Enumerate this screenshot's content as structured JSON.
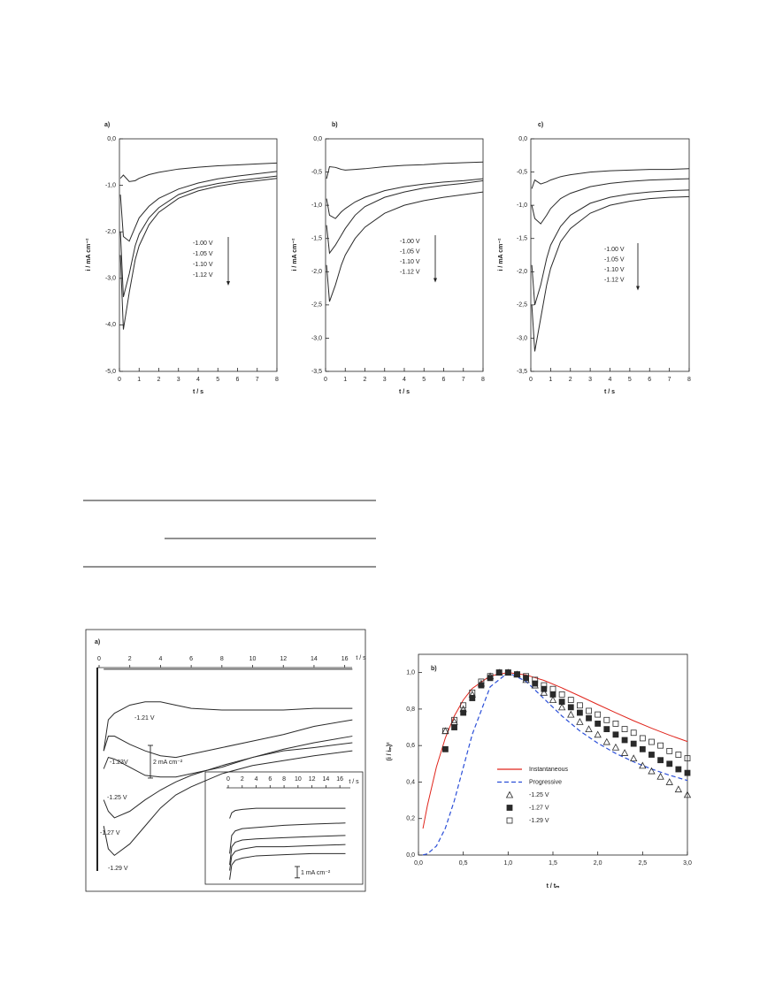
{
  "chart_data": [
    {
      "type": "line",
      "panel_label": "a)",
      "x_label": "t / s",
      "y_label": "i / mA cm⁻²",
      "x": [
        0.05,
        0.2,
        0.5,
        0.8,
        1,
        1.5,
        2,
        3,
        4,
        5,
        6,
        7,
        8
      ],
      "xlim": [
        0,
        8
      ],
      "xticks": [
        0,
        1,
        2,
        3,
        4,
        5,
        6,
        7,
        8
      ],
      "ylim": [
        -5,
        0
      ],
      "yticks": [
        {
          "value": 0,
          "label": "0,0"
        },
        {
          "value": -1,
          "label": "-1,0"
        },
        {
          "value": -2,
          "label": "-2,0"
        },
        {
          "value": -3,
          "label": "-3,0"
        },
        {
          "value": -4,
          "label": "-4,0"
        },
        {
          "value": -5,
          "label": "-5,0"
        }
      ],
      "series": [
        {
          "name": "-1.00 V",
          "color": "#2a2a2a",
          "values": [
            -0.85,
            -0.78,
            -0.92,
            -0.9,
            -0.85,
            -0.77,
            -0.72,
            -0.65,
            -0.61,
            -0.58,
            -0.56,
            -0.54,
            -0.52
          ]
        },
        {
          "name": "-1.05 V",
          "color": "#2a2a2a",
          "values": [
            -1.2,
            -2.1,
            -2.2,
            -1.9,
            -1.7,
            -1.45,
            -1.28,
            -1.08,
            -0.95,
            -0.86,
            -0.8,
            -0.75,
            -0.7
          ]
        },
        {
          "name": "-1.10 V",
          "color": "#2a2a2a",
          "values": [
            -2.0,
            -3.4,
            -2.9,
            -2.3,
            -2.05,
            -1.7,
            -1.48,
            -1.2,
            -1.05,
            -0.96,
            -0.9,
            -0.85,
            -0.8
          ]
        },
        {
          "name": "-1.12 V",
          "color": "#2a2a2a",
          "values": [
            -2.5,
            -4.1,
            -3.3,
            -2.6,
            -2.3,
            -1.85,
            -1.58,
            -1.28,
            -1.12,
            -1.02,
            -0.95,
            -0.9,
            -0.85
          ]
        }
      ]
    },
    {
      "type": "line",
      "panel_label": "b)",
      "x_label": "t / s",
      "y_label": "i / mA cm⁻²",
      "x": [
        0.05,
        0.2,
        0.5,
        0.8,
        1,
        1.5,
        2,
        3,
        4,
        5,
        6,
        7,
        8
      ],
      "xlim": [
        0,
        8
      ],
      "xticks": [
        0,
        1,
        2,
        3,
        4,
        5,
        6,
        7,
        8
      ],
      "ylim": [
        -3.5,
        0
      ],
      "yticks": [
        {
          "value": 0,
          "label": "0,0"
        },
        {
          "value": -0.5,
          "label": "-0,5"
        },
        {
          "value": -1,
          "label": "-1,0"
        },
        {
          "value": -1.5,
          "label": "-1,5"
        },
        {
          "value": -2,
          "label": "-2,0"
        },
        {
          "value": -2.5,
          "label": "-2,5"
        },
        {
          "value": -3,
          "label": "-3,0"
        },
        {
          "value": -3.5,
          "label": "-3,5"
        }
      ],
      "series": [
        {
          "name": "-1.00 V",
          "color": "#2a2a2a",
          "values": [
            -0.6,
            -0.42,
            -0.43,
            -0.46,
            -0.47,
            -0.46,
            -0.45,
            -0.42,
            -0.4,
            -0.39,
            -0.37,
            -0.36,
            -0.35
          ]
        },
        {
          "name": "-1.05 V",
          "color": "#2a2a2a",
          "values": [
            -0.9,
            -1.15,
            -1.2,
            -1.1,
            -1.05,
            -0.95,
            -0.88,
            -0.78,
            -0.72,
            -0.68,
            -0.65,
            -0.63,
            -0.6
          ]
        },
        {
          "name": "-1.10 V",
          "color": "#2a2a2a",
          "values": [
            -1.3,
            -1.72,
            -1.6,
            -1.45,
            -1.35,
            -1.15,
            -1.02,
            -0.88,
            -0.8,
            -0.74,
            -0.7,
            -0.67,
            -0.63
          ]
        },
        {
          "name": "-1.12 V",
          "color": "#2a2a2a",
          "values": [
            -1.9,
            -2.45,
            -2.2,
            -1.9,
            -1.75,
            -1.5,
            -1.33,
            -1.12,
            -1.0,
            -0.93,
            -0.88,
            -0.84,
            -0.8
          ]
        }
      ]
    },
    {
      "type": "line",
      "panel_label": "c)",
      "x_label": "t / s",
      "y_label": "i / mA cm⁻²",
      "x": [
        0.05,
        0.2,
        0.5,
        0.8,
        1,
        1.5,
        2,
        3,
        4,
        5,
        6,
        7,
        8
      ],
      "xlim": [
        0,
        8
      ],
      "xticks": [
        0,
        1,
        2,
        3,
        4,
        5,
        6,
        7,
        8
      ],
      "ylim": [
        -3.5,
        0
      ],
      "yticks": [
        {
          "value": 0,
          "label": "0,0"
        },
        {
          "value": -0.5,
          "label": "-0,5"
        },
        {
          "value": -1,
          "label": "-1,0"
        },
        {
          "value": -1.5,
          "label": "-1,5"
        },
        {
          "value": -2,
          "label": "-2,0"
        },
        {
          "value": -2.5,
          "label": "-2,5"
        },
        {
          "value": -3,
          "label": "-3,0"
        },
        {
          "value": -3.5,
          "label": "-3,5"
        }
      ],
      "series": [
        {
          "name": "-1.00 V",
          "color": "#2a2a2a",
          "values": [
            -0.75,
            -0.62,
            -0.68,
            -0.65,
            -0.62,
            -0.57,
            -0.54,
            -0.5,
            -0.48,
            -0.47,
            -0.46,
            -0.46,
            -0.45
          ]
        },
        {
          "name": "-1.05 V",
          "color": "#2a2a2a",
          "values": [
            -1.0,
            -1.2,
            -1.28,
            -1.15,
            -1.05,
            -0.9,
            -0.82,
            -0.72,
            -0.67,
            -0.64,
            -0.62,
            -0.61,
            -0.6
          ]
        },
        {
          "name": "-1.10 V",
          "color": "#2a2a2a",
          "values": [
            -1.9,
            -2.5,
            -2.2,
            -1.8,
            -1.6,
            -1.32,
            -1.15,
            -0.97,
            -0.88,
            -0.83,
            -0.8,
            -0.78,
            -0.77
          ]
        },
        {
          "name": "-1.12 V",
          "color": "#2a2a2a",
          "values": [
            -2.5,
            -3.2,
            -2.7,
            -2.2,
            -1.95,
            -1.55,
            -1.35,
            -1.12,
            -1.0,
            -0.94,
            -0.9,
            -0.88,
            -0.87
          ]
        }
      ]
    },
    {
      "type": "line",
      "panel_label": "a)",
      "x_label": "t / s",
      "x": [
        0.3,
        0.6,
        1,
        2,
        3,
        4,
        5,
        6,
        8,
        10,
        12,
        14,
        16.5
      ],
      "xlim": [
        0,
        17
      ],
      "xticks": [
        0,
        2,
        4,
        6,
        8,
        10,
        12,
        14,
        16
      ],
      "ylim": [
        -13.7,
        0
      ],
      "scale_bar": {
        "value": 2,
        "label": "2 mA cm⁻²"
      },
      "series": [
        {
          "color": "#2a2a2a",
          "values": [
            -0.1,
            -0.1,
            -0.1,
            -0.1,
            -0.1,
            -0.1,
            -0.1,
            -0.1,
            -0.1,
            -0.1,
            -0.1,
            -0.1,
            -0.1
          ]
        },
        {
          "name": "-1.21 V",
          "color": "#2a2a2a",
          "values": [
            -5.1,
            -3.2,
            -2.8,
            -2.3,
            -2.1,
            -2.1,
            -2.3,
            -2.5,
            -2.6,
            -2.6,
            -2.6,
            -2.5,
            -2.5
          ]
        },
        {
          "name": "-1.23V",
          "color": "#2a2a2a",
          "values": [
            -5.1,
            -4.2,
            -4.2,
            -4.7,
            -5.1,
            -5.4,
            -5.5,
            -5.3,
            -4.9,
            -4.5,
            -4.1,
            -3.6,
            -3.2
          ]
        },
        {
          "name": "-1.25 V",
          "color": "#2a2a2a",
          "values": [
            -6.2,
            -5.5,
            -5.6,
            -6.1,
            -6.6,
            -6.7,
            -6.7,
            -6.5,
            -6.1,
            -5.5,
            -5.0,
            -4.6,
            -4.2
          ]
        },
        {
          "name": "-1.27 V",
          "color": "#2a2a2a",
          "values": [
            -8.1,
            -8.8,
            -9.2,
            -8.8,
            -8.1,
            -7.5,
            -7.0,
            -6.6,
            -6.0,
            -5.5,
            -5.1,
            -4.9,
            -4.6
          ]
        },
        {
          "name": "-1.29 V",
          "color": "#2a2a2a",
          "values": [
            -9.7,
            -11.1,
            -11.5,
            -10.8,
            -9.7,
            -8.6,
            -7.8,
            -7.3,
            -6.5,
            -6.0,
            -5.7,
            -5.4,
            -5.1
          ]
        }
      ]
    },
    {
      "type": "line",
      "x_label": "t / s",
      "x": [
        0.2,
        0.5,
        1,
        2,
        4,
        8,
        12,
        16.8
      ],
      "xlim": [
        0,
        17.5
      ],
      "xticks": [
        0,
        2,
        4,
        6,
        8,
        10,
        12,
        14,
        16
      ],
      "ylim": [
        -8.5,
        0
      ],
      "scale_bar": {
        "value": 1,
        "label": "1 mA cm⁻²"
      },
      "series": [
        {
          "color": "#2a2a2a",
          "values": [
            -2.7,
            -2.2,
            -2.0,
            -1.9,
            -1.8,
            -1.8,
            -1.8,
            -1.8
          ]
        },
        {
          "color": "#2a2a2a",
          "values": [
            -5.8,
            -4.2,
            -3.8,
            -3.6,
            -3.5,
            -3.3,
            -3.2,
            -3.1
          ]
        },
        {
          "color": "#2a2a2a",
          "values": [
            -6.8,
            -5.2,
            -4.8,
            -4.6,
            -4.5,
            -4.4,
            -4.3,
            -4.2
          ]
        },
        {
          "color": "#2a2a2a",
          "values": [
            -7.3,
            -6.0,
            -5.6,
            -5.4,
            -5.2,
            -5.2,
            -5.1,
            -5.0
          ]
        },
        {
          "color": "#2a2a2a",
          "values": [
            -8.1,
            -6.8,
            -6.4,
            -6.2,
            -6.0,
            -5.9,
            -5.8,
            -5.8
          ]
        }
      ]
    },
    {
      "type": "line",
      "panel_label": "b)",
      "x_label": "t / tₘ",
      "y_label": "(i / iₘ)²",
      "xlim": [
        0,
        3
      ],
      "xticks": [
        {
          "value": 0,
          "label": "0,0"
        },
        {
          "value": 0.5,
          "label": "0,5"
        },
        {
          "value": 1,
          "label": "1,0"
        },
        {
          "value": 1.5,
          "label": "1,5"
        },
        {
          "value": 2,
          "label": "2,0"
        },
        {
          "value": 2.5,
          "label": "2,5"
        },
        {
          "value": 3,
          "label": "3,0"
        }
      ],
      "ylim": [
        0,
        1.1
      ],
      "yticks": [
        {
          "value": 0,
          "label": "0,0"
        },
        {
          "value": 0.2,
          "label": "0,2"
        },
        {
          "value": 0.4,
          "label": "0,4"
        },
        {
          "value": 0.6,
          "label": "0,6"
        },
        {
          "value": 0.8,
          "label": "0,8"
        },
        {
          "value": 1,
          "label": "1,0"
        }
      ],
      "series": [
        {
          "name": "Instantaneous",
          "color": "#e0241b",
          "x": [
            0.05,
            0.1,
            0.2,
            0.3,
            0.4,
            0.5,
            0.6,
            0.8,
            1.0,
            1.2,
            1.4,
            1.6,
            1.8,
            2.0,
            2.2,
            2.4,
            2.6,
            2.8,
            3.0
          ],
          "values": [
            0.145,
            0.272,
            0.482,
            0.642,
            0.762,
            0.85,
            0.913,
            0.982,
            1.0,
            0.987,
            0.957,
            0.916,
            0.871,
            0.825,
            0.78,
            0.736,
            0.695,
            0.657,
            0.622
          ]
        },
        {
          "name": "Progressive",
          "color": "#2b4fd8",
          "dash": true,
          "x": [
            0.05,
            0.1,
            0.2,
            0.3,
            0.4,
            0.5,
            0.6,
            0.8,
            1.0,
            1.2,
            1.4,
            1.6,
            1.8,
            2.0,
            2.2,
            2.4,
            2.6,
            2.8,
            3.0
          ],
          "values": [
            0.001,
            0.0065,
            0.049,
            0.147,
            0.298,
            0.48,
            0.661,
            0.922,
            1.0,
            0.952,
            0.857,
            0.762,
            0.68,
            0.613,
            0.557,
            0.5106,
            0.4713,
            0.4376,
            0.4085
          ]
        },
        {
          "name": "-1.25 V",
          "color": "#2a2a2a",
          "marker": "triangle",
          "x": [
            0.3,
            0.4,
            0.5,
            0.6,
            0.7,
            0.8,
            0.9,
            1.0,
            1.1,
            1.2,
            1.3,
            1.4,
            1.5,
            1.6,
            1.7,
            1.8,
            1.9,
            2.0,
            2.1,
            2.2,
            2.3,
            2.4,
            2.5,
            2.6,
            2.7,
            2.8,
            2.9,
            3.0
          ],
          "values": [
            0.68,
            0.73,
            0.8,
            0.88,
            0.94,
            0.98,
            1.0,
            1.0,
            0.99,
            0.96,
            0.93,
            0.89,
            0.85,
            0.81,
            0.77,
            0.73,
            0.69,
            0.66,
            0.62,
            0.59,
            0.56,
            0.53,
            0.49,
            0.46,
            0.43,
            0.4,
            0.36,
            0.33
          ]
        },
        {
          "name": "-1.27 V",
          "color": "#2a2a2a",
          "marker": "filled-square",
          "x": [
            0.3,
            0.4,
            0.5,
            0.6,
            0.7,
            0.8,
            0.9,
            1.0,
            1.1,
            1.2,
            1.3,
            1.4,
            1.5,
            1.6,
            1.7,
            1.8,
            1.9,
            2.0,
            2.1,
            2.2,
            2.3,
            2.4,
            2.5,
            2.6,
            2.7,
            2.8,
            2.9,
            3.0
          ],
          "values": [
            0.58,
            0.7,
            0.78,
            0.86,
            0.93,
            0.97,
            1.0,
            1.0,
            0.99,
            0.97,
            0.94,
            0.91,
            0.88,
            0.84,
            0.81,
            0.78,
            0.75,
            0.72,
            0.69,
            0.66,
            0.63,
            0.61,
            0.58,
            0.55,
            0.52,
            0.5,
            0.47,
            0.45
          ]
        },
        {
          "name": "-1.29 V",
          "color": "#2a2a2a",
          "marker": "square",
          "x": [
            0.3,
            0.4,
            0.5,
            0.6,
            0.7,
            0.8,
            0.9,
            1.0,
            1.1,
            1.2,
            1.3,
            1.4,
            1.5,
            1.6,
            1.7,
            1.8,
            1.9,
            2.0,
            2.1,
            2.2,
            2.3,
            2.4,
            2.5,
            2.6,
            2.7,
            2.8,
            2.9,
            3.0
          ],
          "values": [
            0.68,
            0.74,
            0.82,
            0.89,
            0.95,
            0.98,
            1.0,
            1.0,
            0.99,
            0.98,
            0.96,
            0.93,
            0.91,
            0.88,
            0.85,
            0.82,
            0.79,
            0.77,
            0.74,
            0.72,
            0.69,
            0.67,
            0.64,
            0.62,
            0.6,
            0.57,
            0.55,
            0.53
          ]
        }
      ]
    }
  ]
}
